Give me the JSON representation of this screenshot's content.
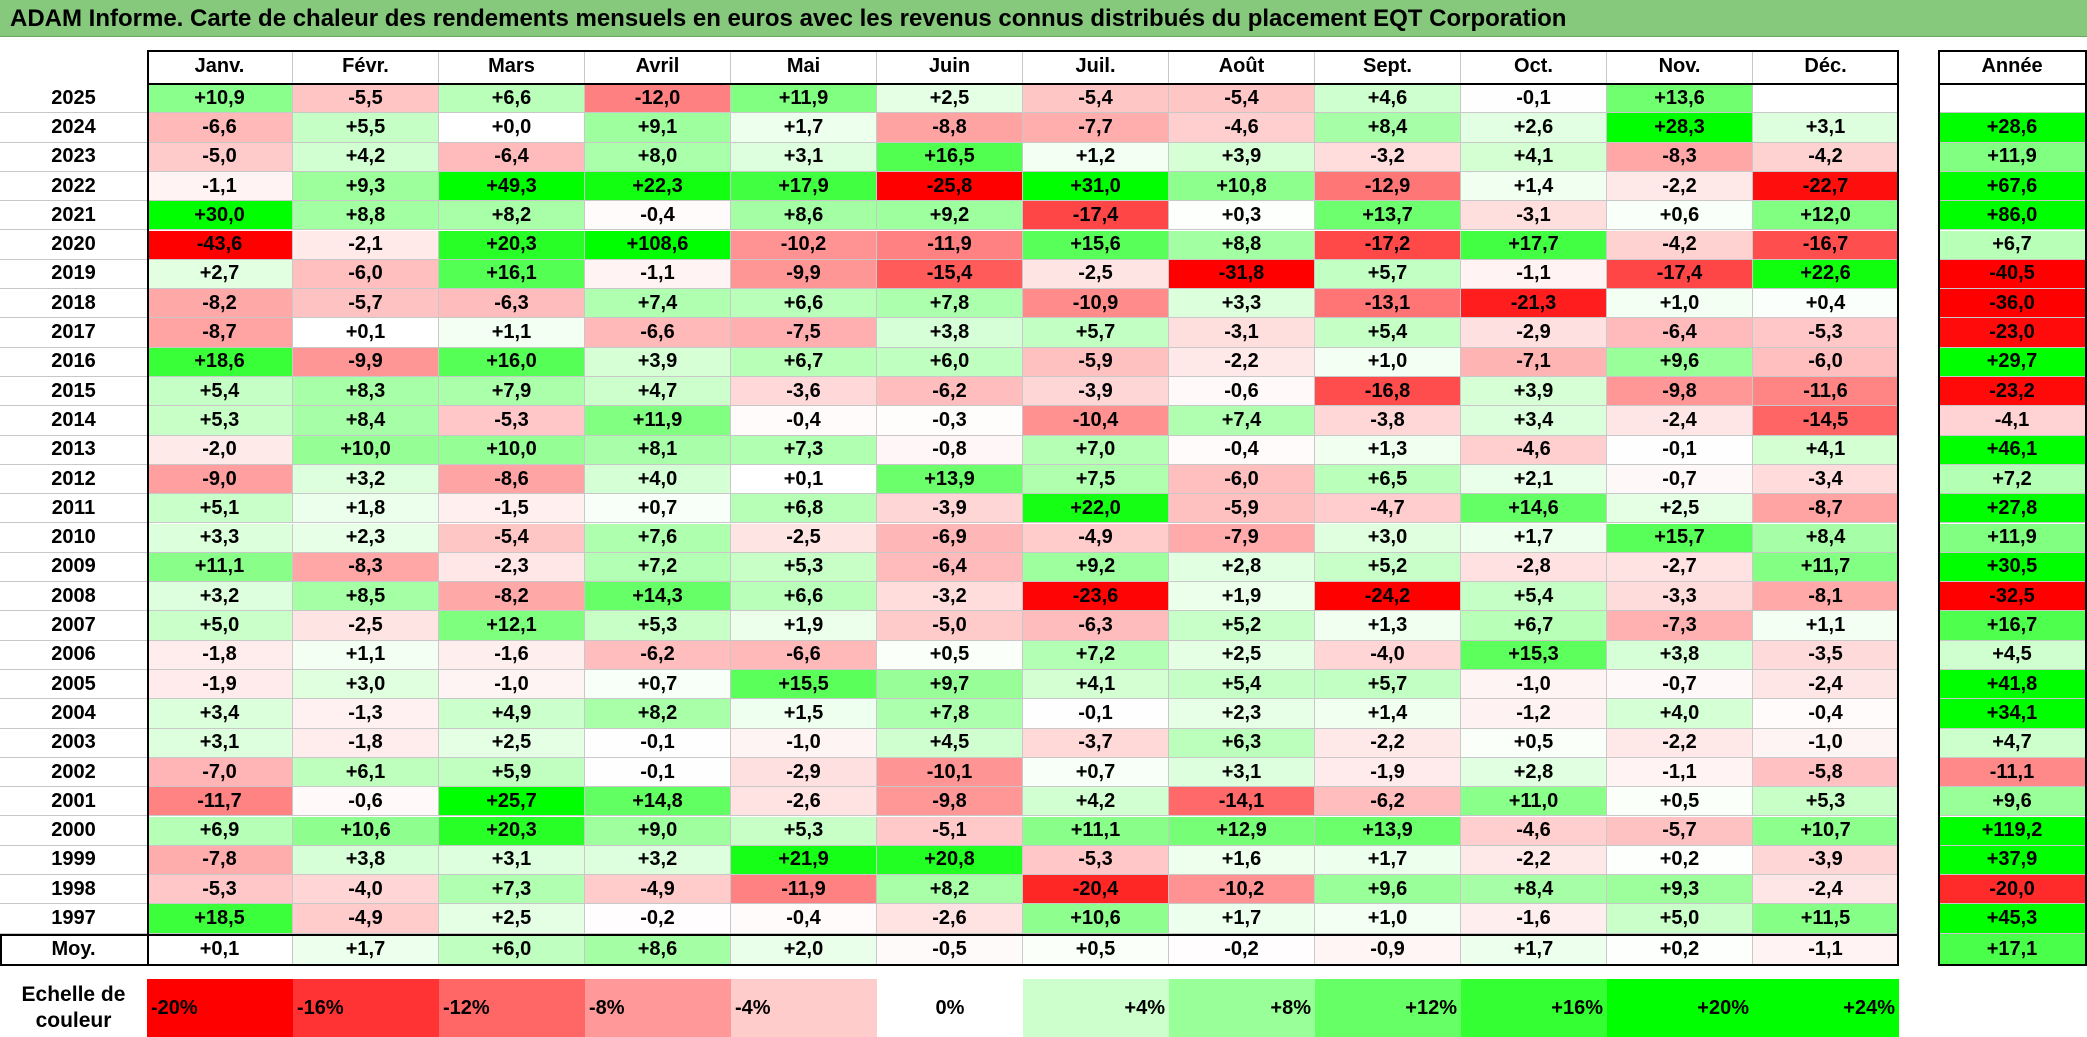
{
  "title": "ADAM Informe. Carte de chaleur des rendements mensuels en euros avec les revenus connus distribués du placement EQT Corporation",
  "chart_data": {
    "type": "heatmap",
    "months": [
      "Janv.",
      "Févr.",
      "Mars",
      "Avril",
      "Mai",
      "Juin",
      "Juil.",
      "Août",
      "Sept.",
      "Oct.",
      "Nov.",
      "Déc."
    ],
    "annual_header": "Année",
    "rows": [
      {
        "year": "2025",
        "values": [
          "+10,9",
          "-5,5",
          "+6,6",
          "-12,0",
          "+11,9",
          "+2,5",
          "-5,4",
          "-5,4",
          "+4,6",
          "-0,1",
          "+13,6",
          ""
        ],
        "annual": ""
      },
      {
        "year": "2024",
        "values": [
          "-6,6",
          "+5,5",
          "+0,0",
          "+9,1",
          "+1,7",
          "-8,8",
          "-7,7",
          "-4,6",
          "+8,4",
          "+2,6",
          "+28,3",
          "+3,1"
        ],
        "annual": "+28,6"
      },
      {
        "year": "2023",
        "values": [
          "-5,0",
          "+4,2",
          "-6,4",
          "+8,0",
          "+3,1",
          "+16,5",
          "+1,2",
          "+3,9",
          "-3,2",
          "+4,1",
          "-8,3",
          "-4,2"
        ],
        "annual": "+11,9"
      },
      {
        "year": "2022",
        "values": [
          "-1,1",
          "+9,3",
          "+49,3",
          "+22,3",
          "+17,9",
          "-25,8",
          "+31,0",
          "+10,8",
          "-12,9",
          "+1,4",
          "-2,2",
          "-22,7"
        ],
        "annual": "+67,6"
      },
      {
        "year": "2021",
        "values": [
          "+30,0",
          "+8,8",
          "+8,2",
          "-0,4",
          "+8,6",
          "+9,2",
          "-17,4",
          "+0,3",
          "+13,7",
          "-3,1",
          "+0,6",
          "+12,0"
        ],
        "annual": "+86,0"
      },
      {
        "year": "2020",
        "values": [
          "-43,6",
          "-2,1",
          "+20,3",
          "+108,6",
          "-10,2",
          "-11,9",
          "+15,6",
          "+8,8",
          "-17,2",
          "+17,7",
          "-4,2",
          "-16,7"
        ],
        "annual": "+6,7"
      },
      {
        "year": "2019",
        "values": [
          "+2,7",
          "-6,0",
          "+16,1",
          "-1,1",
          "-9,9",
          "-15,4",
          "-2,5",
          "-31,8",
          "+5,7",
          "-1,1",
          "-17,4",
          "+22,6"
        ],
        "annual": "-40,5"
      },
      {
        "year": "2018",
        "values": [
          "-8,2",
          "-5,7",
          "-6,3",
          "+7,4",
          "+6,6",
          "+7,8",
          "-10,9",
          "+3,3",
          "-13,1",
          "-21,3",
          "+1,0",
          "+0,4"
        ],
        "annual": "-36,0"
      },
      {
        "year": "2017",
        "values": [
          "-8,7",
          "+0,1",
          "+1,1",
          "-6,6",
          "-7,5",
          "+3,8",
          "+5,7",
          "-3,1",
          "+5,4",
          "-2,9",
          "-6,4",
          "-5,3"
        ],
        "annual": "-23,0"
      },
      {
        "year": "2016",
        "values": [
          "+18,6",
          "-9,9",
          "+16,0",
          "+3,9",
          "+6,7",
          "+6,0",
          "-5,9",
          "-2,2",
          "+1,0",
          "-7,1",
          "+9,6",
          "-6,0"
        ],
        "annual": "+29,7"
      },
      {
        "year": "2015",
        "values": [
          "+5,4",
          "+8,3",
          "+7,9",
          "+4,7",
          "-3,6",
          "-6,2",
          "-3,9",
          "-0,6",
          "-16,8",
          "+3,9",
          "-9,8",
          "-11,6"
        ],
        "annual": "-23,2"
      },
      {
        "year": "2014",
        "values": [
          "+5,3",
          "+8,4",
          "-5,3",
          "+11,9",
          "-0,4",
          "-0,3",
          "-10,4",
          "+7,4",
          "-3,8",
          "+3,4",
          "-2,4",
          "-14,5"
        ],
        "annual": "-4,1"
      },
      {
        "year": "2013",
        "values": [
          "-2,0",
          "+10,0",
          "+10,0",
          "+8,1",
          "+7,3",
          "-0,8",
          "+7,0",
          "-0,4",
          "+1,3",
          "-4,6",
          "-0,1",
          "+4,1"
        ],
        "annual": "+46,1"
      },
      {
        "year": "2012",
        "values": [
          "-9,0",
          "+3,2",
          "-8,6",
          "+4,0",
          "+0,1",
          "+13,9",
          "+7,5",
          "-6,0",
          "+6,5",
          "+2,1",
          "-0,7",
          "-3,4"
        ],
        "annual": "+7,2"
      },
      {
        "year": "2011",
        "values": [
          "+5,1",
          "+1,8",
          "-1,5",
          "+0,7",
          "+6,8",
          "-3,9",
          "+22,0",
          "-5,9",
          "-4,7",
          "+14,6",
          "+2,5",
          "-8,7"
        ],
        "annual": "+27,8"
      },
      {
        "year": "2010",
        "values": [
          "+3,3",
          "+2,3",
          "-5,4",
          "+7,6",
          "-2,5",
          "-6,9",
          "-4,9",
          "-7,9",
          "+3,0",
          "+1,7",
          "+15,7",
          "+8,4"
        ],
        "annual": "+11,9"
      },
      {
        "year": "2009",
        "values": [
          "+11,1",
          "-8,3",
          "-2,3",
          "+7,2",
          "+5,3",
          "-6,4",
          "+9,2",
          "+2,8",
          "+5,2",
          "-2,8",
          "-2,7",
          "+11,7"
        ],
        "annual": "+30,5"
      },
      {
        "year": "2008",
        "values": [
          "+3,2",
          "+8,5",
          "-8,2",
          "+14,3",
          "+6,6",
          "-3,2",
          "-23,6",
          "+1,9",
          "-24,2",
          "+5,4",
          "-3,3",
          "-8,1"
        ],
        "annual": "-32,5"
      },
      {
        "year": "2007",
        "values": [
          "+5,0",
          "-2,5",
          "+12,1",
          "+5,3",
          "+1,9",
          "-5,0",
          "-6,3",
          "+5,2",
          "+1,3",
          "+6,7",
          "-7,3",
          "+1,1"
        ],
        "annual": "+16,7"
      },
      {
        "year": "2006",
        "values": [
          "-1,8",
          "+1,1",
          "-1,6",
          "-6,2",
          "-6,6",
          "+0,5",
          "+7,2",
          "+2,5",
          "-4,0",
          "+15,3",
          "+3,8",
          "-3,5"
        ],
        "annual": "+4,5"
      },
      {
        "year": "2005",
        "values": [
          "-1,9",
          "+3,0",
          "-1,0",
          "+0,7",
          "+15,5",
          "+9,7",
          "+4,1",
          "+5,4",
          "+5,7",
          "-1,0",
          "-0,7",
          "-2,4"
        ],
        "annual": "+41,8"
      },
      {
        "year": "2004",
        "values": [
          "+3,4",
          "-1,3",
          "+4,9",
          "+8,2",
          "+1,5",
          "+7,8",
          "-0,1",
          "+2,3",
          "+1,4",
          "-1,2",
          "+4,0",
          "-0,4"
        ],
        "annual": "+34,1"
      },
      {
        "year": "2003",
        "values": [
          "+3,1",
          "-1,8",
          "+2,5",
          "-0,1",
          "-1,0",
          "+4,5",
          "-3,7",
          "+6,3",
          "-2,2",
          "+0,5",
          "-2,2",
          "-1,0"
        ],
        "annual": "+4,7"
      },
      {
        "year": "2002",
        "values": [
          "-7,0",
          "+6,1",
          "+5,9",
          "-0,1",
          "-2,9",
          "-10,1",
          "+0,7",
          "+3,1",
          "-1,9",
          "+2,8",
          "-1,1",
          "-5,8"
        ],
        "annual": "-11,1"
      },
      {
        "year": "2001",
        "values": [
          "-11,7",
          "-0,6",
          "+25,7",
          "+14,8",
          "-2,6",
          "-9,8",
          "+4,2",
          "-14,1",
          "-6,2",
          "+11,0",
          "+0,5",
          "+5,3"
        ],
        "annual": "+9,6"
      },
      {
        "year": "2000",
        "values": [
          "+6,9",
          "+10,6",
          "+20,3",
          "+9,0",
          "+5,3",
          "-5,1",
          "+11,1",
          "+12,9",
          "+13,9",
          "-4,6",
          "-5,7",
          "+10,7"
        ],
        "annual": "+119,2"
      },
      {
        "year": "1999",
        "values": [
          "-7,8",
          "+3,8",
          "+3,1",
          "+3,2",
          "+21,9",
          "+20,8",
          "-5,3",
          "+1,6",
          "+1,7",
          "-2,2",
          "+0,2",
          "-3,9"
        ],
        "annual": "+37,9"
      },
      {
        "year": "1998",
        "values": [
          "-5,3",
          "-4,0",
          "+7,3",
          "-4,9",
          "-11,9",
          "+8,2",
          "-20,4",
          "-10,2",
          "+9,6",
          "+8,4",
          "+9,3",
          "-2,4"
        ],
        "annual": "-20,0"
      },
      {
        "year": "1997",
        "values": [
          "+18,5",
          "-4,9",
          "+2,5",
          "-0,2",
          "-0,4",
          "-2,6",
          "+10,6",
          "+1,7",
          "+1,0",
          "-1,6",
          "+5,0",
          "+11,5"
        ],
        "annual": "+45,3"
      }
    ],
    "average": {
      "label": "Moy.",
      "values": [
        "+0,1",
        "+1,7",
        "+6,0",
        "+8,6",
        "+2,0",
        "-0,5",
        "+0,5",
        "-0,2",
        "-0,9",
        "+1,7",
        "+0,2",
        "-1,1"
      ],
      "annual": "+17,1"
    },
    "color_scale": {
      "label_line1": "Echelle de",
      "label_line2": "couleur",
      "steps": [
        {
          "label": "-20%",
          "value": -20
        },
        {
          "label": "-16%",
          "value": -16
        },
        {
          "label": "-12%",
          "value": -12
        },
        {
          "label": "-8%",
          "value": -8
        },
        {
          "label": "-4%",
          "value": -4
        },
        {
          "label": "0%",
          "value": 0
        },
        {
          "label": "+4%",
          "value": 4
        },
        {
          "label": "+8%",
          "value": 8
        },
        {
          "label": "+12%",
          "value": 12
        },
        {
          "label": "+16%",
          "value": 16
        },
        {
          "label": "+20%",
          "value": 20
        },
        {
          "label": "+24%",
          "value": 24
        }
      ]
    },
    "colors": {
      "negative": "#ff0000",
      "neutral": "#ffffff",
      "positive": "#00ff00"
    }
  }
}
